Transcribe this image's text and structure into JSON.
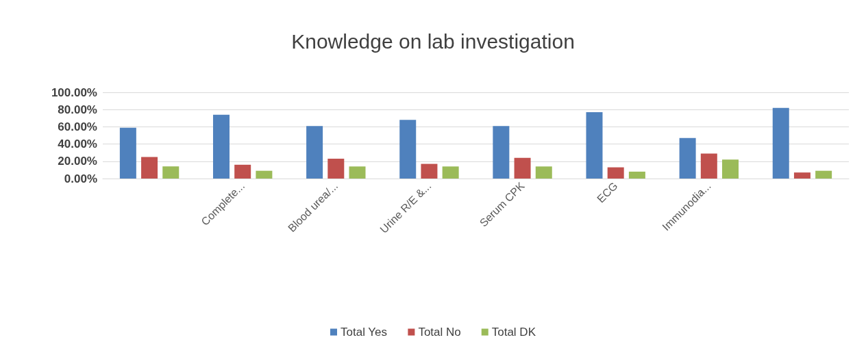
{
  "chart_data": {
    "type": "bar",
    "title": "Knowledge on lab investigation",
    "categories": [
      null,
      "Complete...",
      "Blood urea/...",
      "Urine R/E &...",
      "Serum CPK",
      "ECG",
      "Immunodia...",
      null
    ],
    "series": [
      {
        "name": "Total Yes",
        "color": "#4f81bd",
        "values": [
          59,
          74,
          61,
          68,
          61,
          77,
          47,
          82
        ]
      },
      {
        "name": "Total No",
        "color": "#c0504d",
        "values": [
          25,
          16,
          23,
          17,
          24,
          13,
          29,
          7
        ]
      },
      {
        "name": "Total DK",
        "color": "#9bbb59",
        "values": [
          14,
          9,
          14,
          14,
          14,
          8,
          22,
          9
        ]
      }
    ],
    "ylim": [
      0,
      100
    ],
    "yticks": [
      {
        "value": 0,
        "label": "0.00%"
      },
      {
        "value": 20,
        "label": "20.00%"
      },
      {
        "value": 40,
        "label": "40.00%"
      },
      {
        "value": 60,
        "label": "60.00%"
      },
      {
        "value": 80,
        "label": "80.00%"
      },
      {
        "value": 100,
        "label": "100.00%"
      }
    ],
    "grid": "y",
    "legend": "bottom"
  }
}
